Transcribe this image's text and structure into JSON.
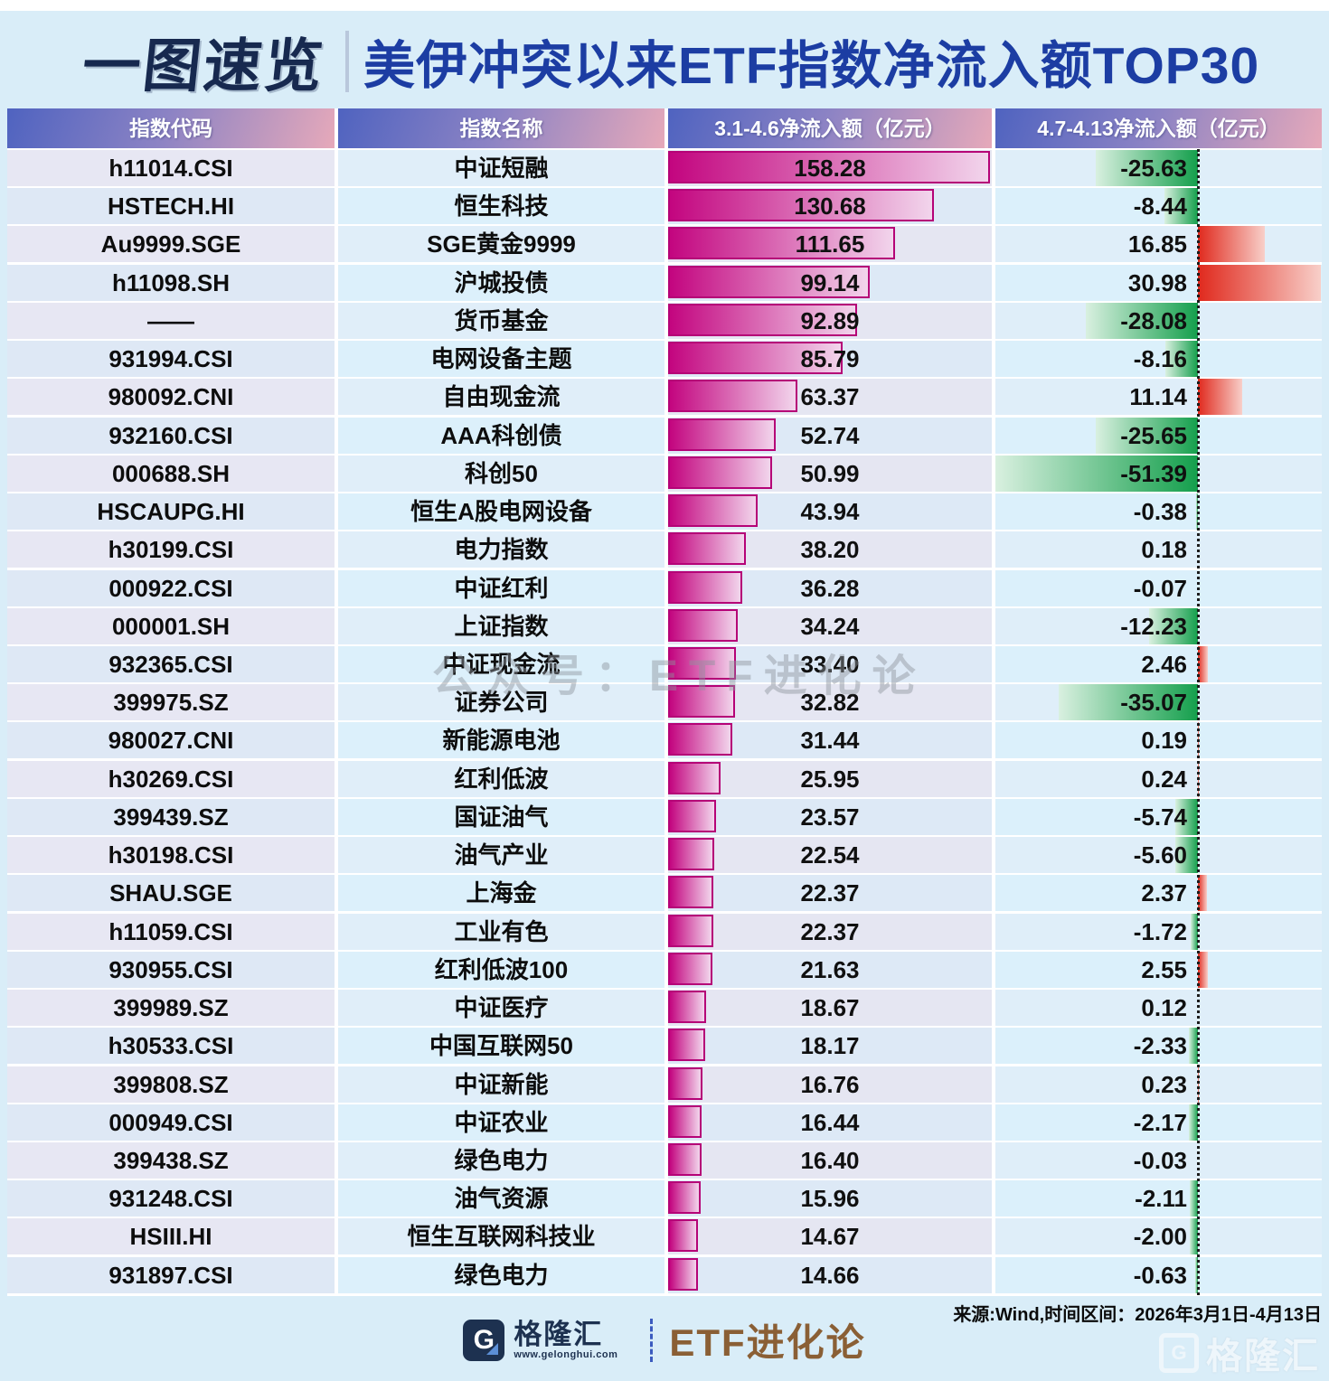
{
  "title": {
    "badge": "一图速览",
    "main": "美伊冲突以来ETF指数净流入额TOP30"
  },
  "table": {
    "header_code": "指数代码",
    "header_name": "指数名称"
  },
  "chart_data": {
    "type": "bar",
    "orientation": "horizontal",
    "title": "美伊冲突以来ETF指数净流入额TOP30",
    "categories_codes": [
      "h11014.CSI",
      "HSTECH.HI",
      "Au9999.SGE",
      "h11098.SH",
      "——",
      "931994.CSI",
      "980092.CNI",
      "932160.CSI",
      "000688.SH",
      "HSCAUPG.HI",
      "h30199.CSI",
      "000922.CSI",
      "000001.SH",
      "932365.CSI",
      "399975.SZ",
      "980027.CNI",
      "h30269.CSI",
      "399439.SZ",
      "h30198.CSI",
      "SHAU.SGE",
      "h11059.CSI",
      "930955.CSI",
      "399989.SZ",
      "h30533.CSI",
      "399808.SZ",
      "000949.CSI",
      "399438.SZ",
      "931248.CSI",
      "HSIII.HI",
      "931897.CSI"
    ],
    "categories": [
      "中证短融",
      "恒生科技",
      "SGE黄金9999",
      "沪城投债",
      "货币基金",
      "电网设备主题",
      "自由现金流",
      "AAA科创债",
      "科创50",
      "恒生A股电网设备",
      "电力指数",
      "中证红利",
      "上证指数",
      "中证现金流",
      "证券公司",
      "新能源电池",
      "红利低波",
      "国证油气",
      "油气产业",
      "上海金",
      "工业有色",
      "红利低波100",
      "中证医疗",
      "中国互联网50",
      "中证新能",
      "中证农业",
      "绿色电力",
      "油气资源",
      "恒生互联网科技业",
      "绿色电力"
    ],
    "series": [
      {
        "name": "3.1-4.6净流入额（亿元）",
        "values": [
          158.28,
          130.68,
          111.65,
          99.14,
          92.89,
          85.79,
          63.37,
          52.74,
          50.99,
          43.94,
          38.2,
          36.28,
          34.24,
          33.4,
          32.82,
          31.44,
          25.95,
          23.57,
          22.54,
          22.37,
          22.37,
          21.63,
          18.67,
          18.17,
          16.76,
          16.44,
          16.4,
          15.96,
          14.67,
          14.66
        ]
      },
      {
        "name": "4.7-4.13净流入额（亿元）",
        "values": [
          -25.63,
          -8.44,
          16.85,
          30.98,
          -28.08,
          -8.16,
          11.14,
          -25.65,
          -51.39,
          -0.38,
          0.18,
          -0.07,
          -12.23,
          2.46,
          -35.07,
          0.19,
          0.24,
          -5.74,
          -5.6,
          2.37,
          -1.72,
          2.55,
          0.12,
          -2.33,
          0.23,
          -2.17,
          -0.03,
          -2.11,
          -2.0,
          -0.63
        ]
      }
    ],
    "xlim_series1": [
      0,
      160
    ],
    "xlim_series2": [
      -55,
      35
    ],
    "grid": false,
    "legend_position": "none"
  },
  "colors": {
    "magenta_dark": "#c3057f",
    "magenta_light": "#f2d5ec",
    "magenta_border": "#b50277",
    "green_dark": "#149f4c",
    "green_light": "#d9f0e0",
    "red_dark": "#e0291d",
    "red_light": "#f8cfc9",
    "header_blue": "#4f63c0",
    "header_pink": "#e6a9ba",
    "title_badge": "#17294f",
    "title_main": "#1c3da3"
  },
  "watermarks": {
    "middle": "公众号：ETF进化论",
    "bottom_right_name": "格隆汇",
    "bottom_right_glyph": "G"
  },
  "footer": {
    "source_note": "来源:Wind,时间区间：2026年3月1日-4月13日",
    "gelonghui_glyph": "G",
    "gelonghui_name": "格隆汇",
    "gelonghui_url": "www.gelonghui.com",
    "brand": "ETF进化论"
  }
}
